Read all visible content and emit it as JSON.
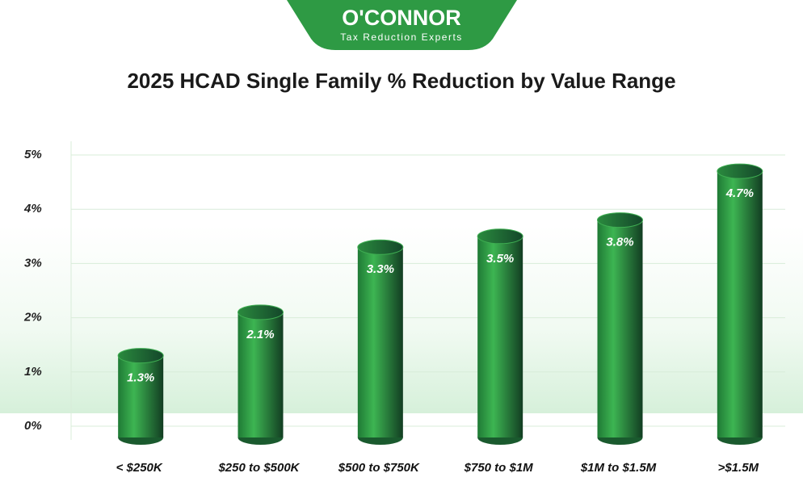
{
  "logo": {
    "name": "O'CONNOR",
    "tagline": "Tax Reduction Experts"
  },
  "chart_data": {
    "type": "cylinder",
    "title": "2025 HCAD Single Family % Reduction by Value Range",
    "categories": [
      "< $250K",
      "$250 to $500K",
      "$500 to $750K",
      "$750 to $1M",
      "$1M to $1.5M",
      ">$1.5M"
    ],
    "values": [
      1.3,
      2.1,
      3.3,
      3.5,
      3.8,
      4.7
    ],
    "value_labels": [
      "1.3%",
      "2.1%",
      "3.3%",
      "3.5%",
      "3.8%",
      "4.7%"
    ],
    "color": "#2e9a44",
    "ylim": [
      0,
      5
    ],
    "yticks": [
      {
        "value": 0,
        "label": "0%"
      },
      {
        "value": 1,
        "label": "1%"
      },
      {
        "value": 2,
        "label": "2%"
      },
      {
        "value": 3,
        "label": "3%"
      },
      {
        "value": 4,
        "label": "4%"
      },
      {
        "value": 5,
        "label": "5%"
      }
    ],
    "grid": true
  }
}
